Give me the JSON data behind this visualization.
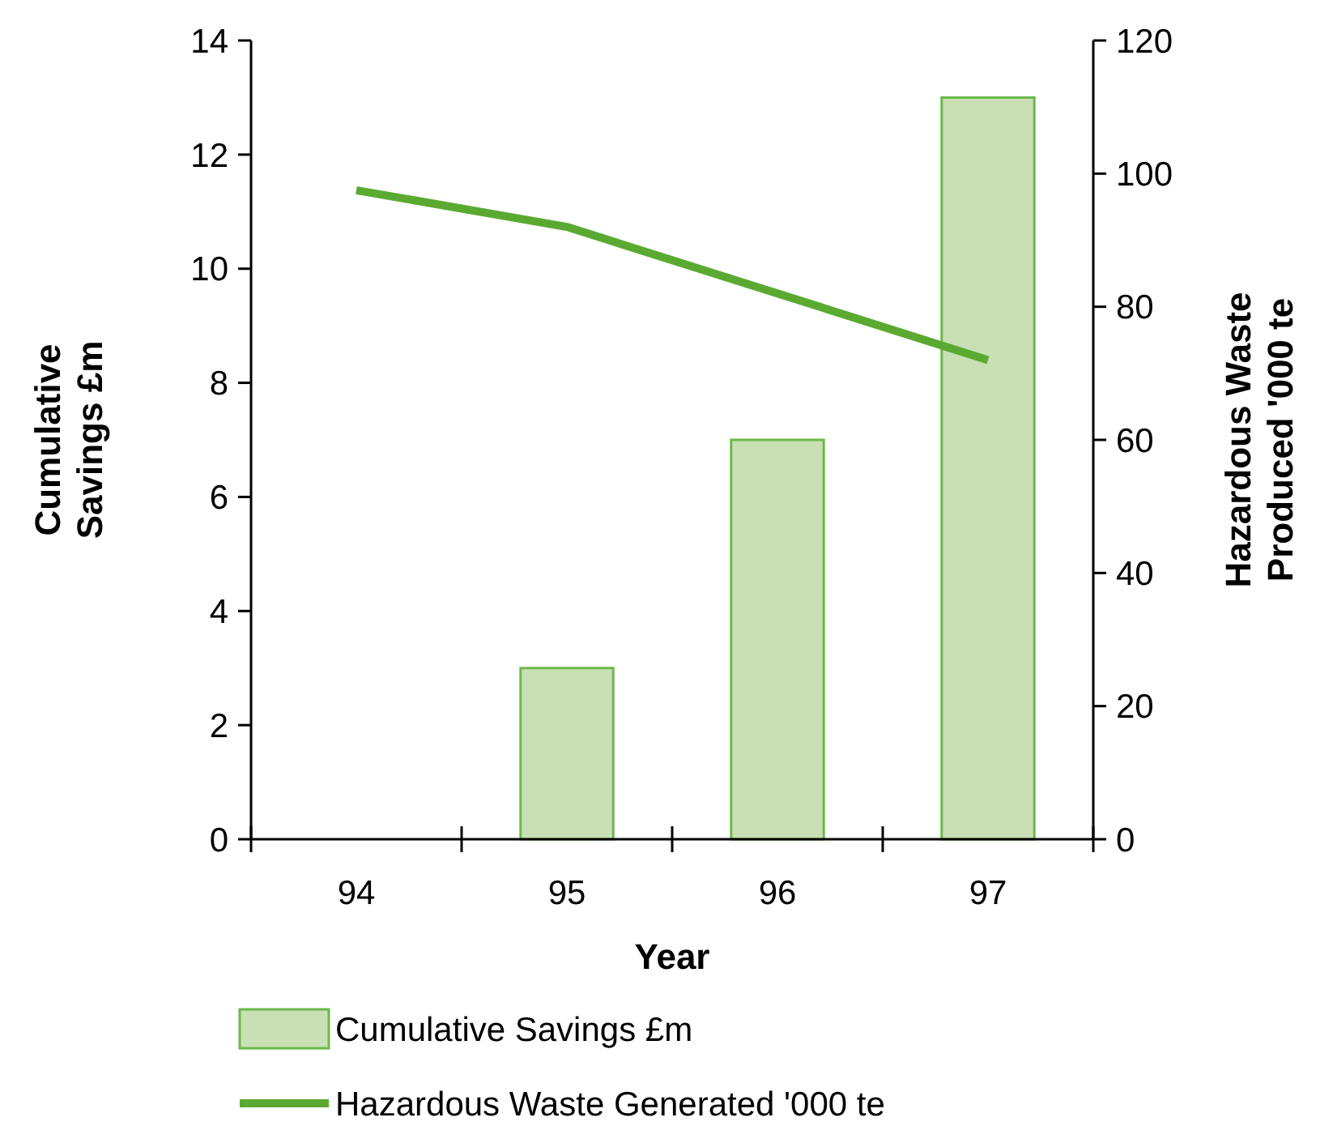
{
  "chart_data": {
    "type": "bar",
    "xlabel": "Year",
    "ylabel": "Cumulative\nSavings £m",
    "y2label": "Hazardous Waste\nProduced '000 te",
    "categories": [
      "94",
      "95",
      "96",
      "97"
    ],
    "series": [
      {
        "name": "Cumulative Savings £m",
        "color": "#c9e0b5",
        "values": [
          0,
          3,
          7,
          13
        ]
      },
      {
        "name": "Hazardous Waste Generated '000 te",
        "type": "line",
        "axis": "y2",
        "color": "#5aaa32",
        "values": [
          97.5,
          92,
          82,
          72
        ]
      }
    ],
    "ylim": [
      0,
      14
    ],
    "yticks": [
      0,
      2,
      4,
      6,
      8,
      10,
      12,
      14
    ],
    "y2lim": [
      0,
      120
    ],
    "y2ticks": [
      0,
      20,
      40,
      60,
      80,
      100,
      120
    ],
    "grid": false,
    "legend": "bottom",
    "marker": "none",
    "line_style": "solid"
  }
}
